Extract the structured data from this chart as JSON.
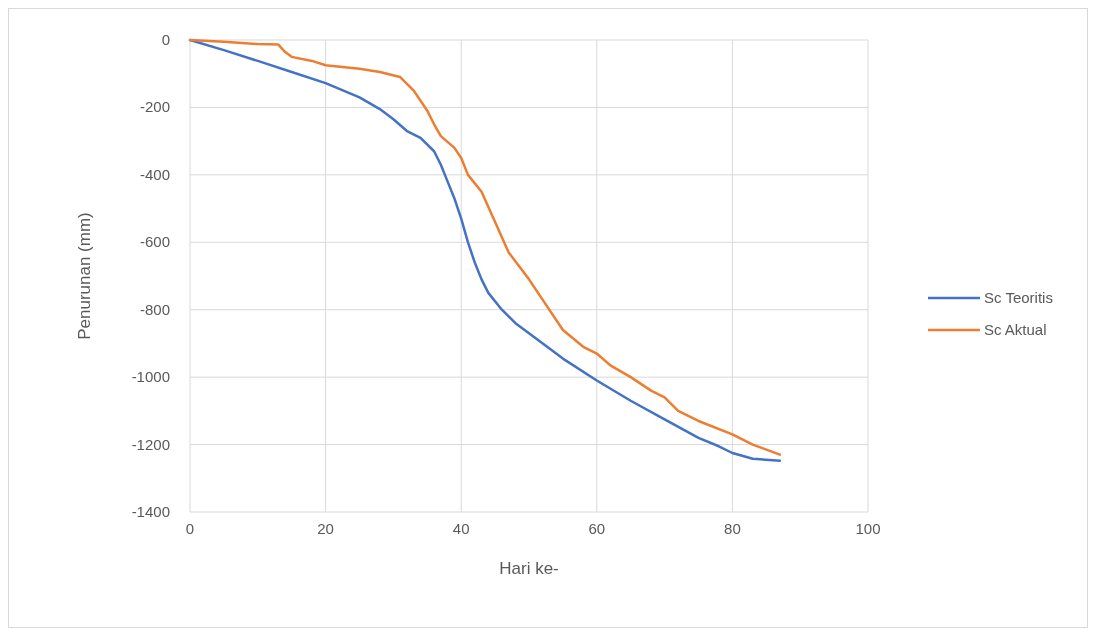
{
  "chart_data": {
    "type": "line",
    "xlabel": "Hari ke-",
    "ylabel": "Penurunan (mm)",
    "xlim": [
      0,
      100
    ],
    "xticks": [
      0,
      20,
      40,
      60,
      80,
      100
    ],
    "ylim": [
      -1400,
      0
    ],
    "yticks": [
      -1400,
      -1200,
      -1000,
      -800,
      -600,
      -400,
      -200,
      0
    ],
    "grid": true,
    "legend": "right",
    "marker": "none",
    "line_style": "solid",
    "series": [
      {
        "name": "Sc Teoritis",
        "color": "#4472c4",
        "x": [
          0,
          5,
          10,
          15,
          20,
          25,
          28,
          30,
          32,
          34,
          36,
          37,
          38,
          39,
          40,
          41,
          42,
          43,
          44,
          46,
          48,
          50,
          55,
          60,
          65,
          70,
          75,
          78,
          80,
          83,
          87
        ],
        "values": [
          0,
          -30,
          -62,
          -95,
          -128,
          -170,
          -205,
          -235,
          -270,
          -290,
          -330,
          -370,
          -420,
          -470,
          -530,
          -600,
          -660,
          -710,
          -750,
          -800,
          -840,
          -870,
          -945,
          -1010,
          -1070,
          -1125,
          -1180,
          -1205,
          -1225,
          -1242,
          -1248
        ]
      },
      {
        "name": "Sc Aktual",
        "color": "#ed7d31",
        "x": [
          0,
          5,
          10,
          13,
          14,
          15,
          18,
          20,
          25,
          28,
          31,
          33,
          35,
          36,
          37,
          39,
          40,
          41,
          43,
          45,
          47,
          50,
          52,
          55,
          58,
          60,
          62,
          65,
          68,
          70,
          72,
          75,
          80,
          83,
          87
        ],
        "values": [
          0,
          -5,
          -12,
          -13,
          -35,
          -50,
          -62,
          -75,
          -85,
          -95,
          -110,
          -150,
          -210,
          -250,
          -285,
          -320,
          -350,
          -400,
          -450,
          -540,
          -630,
          -710,
          -770,
          -860,
          -910,
          -930,
          -965,
          -1000,
          -1040,
          -1060,
          -1100,
          -1130,
          -1170,
          -1200,
          -1230
        ]
      }
    ]
  }
}
